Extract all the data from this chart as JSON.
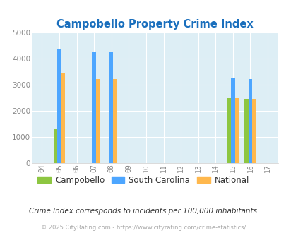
{
  "title": "Campobello Property Crime Index",
  "years": [
    2004,
    2005,
    2006,
    2007,
    2008,
    2009,
    2010,
    2011,
    2012,
    2013,
    2014,
    2015,
    2016,
    2017
  ],
  "year_labels": [
    "04",
    "05",
    "06",
    "07",
    "08",
    "09",
    "10",
    "11",
    "12",
    "13",
    "14",
    "15",
    "16",
    "17"
  ],
  "campobello": {
    "2005": 1300,
    "2015": 2490,
    "2016": 2460
  },
  "south_carolina": {
    "2005": 4370,
    "2007": 4270,
    "2008": 4240,
    "2015": 3270,
    "2016": 3230
  },
  "national": {
    "2005": 3440,
    "2007": 3230,
    "2008": 3210,
    "2015": 2490,
    "2016": 2450
  },
  "bar_width": 0.22,
  "color_campobello": "#8dc641",
  "color_sc": "#4da6ff",
  "color_national": "#ffb84d",
  "bg_color": "#ddeef5",
  "ylim": [
    0,
    5000
  ],
  "yticks": [
    0,
    1000,
    2000,
    3000,
    4000,
    5000
  ],
  "title_color": "#1a6fbd",
  "footer_text": "© 2025 CityRating.com - https://www.cityrating.com/crime-statistics/",
  "subtitle": "Crime Index corresponds to incidents per 100,000 inhabitants",
  "legend_labels": [
    "Campobello",
    "South Carolina",
    "National"
  ]
}
